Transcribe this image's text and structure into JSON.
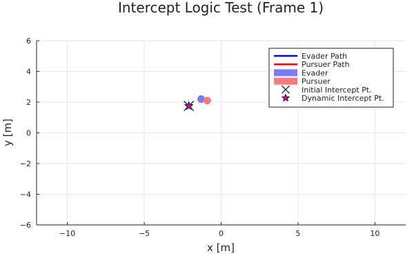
{
  "chart_data": {
    "type": "scatter",
    "title": "Intercept Logic Test (Frame 1)",
    "xlabel": "x [m]",
    "ylabel": "y [m]",
    "xlim": [
      -12,
      12
    ],
    "ylim": [
      -6,
      6
    ],
    "xticks": [
      -10,
      -5,
      0,
      5,
      10
    ],
    "yticks": [
      -6,
      -4,
      -2,
      0,
      2,
      4,
      6
    ],
    "xtick_labels": [
      "−10",
      "−5",
      "0",
      "5",
      "10"
    ],
    "ytick_labels": [
      "−6",
      "−4",
      "−2",
      "0",
      "2",
      "4",
      "6"
    ],
    "grid": true,
    "legend_position": "top-right",
    "series": [
      {
        "name": "Evader Path",
        "kind": "line",
        "color": "#0000ff",
        "x": [],
        "y": []
      },
      {
        "name": "Pursuer Path",
        "kind": "line",
        "color": "#ff0000",
        "x": [],
        "y": []
      },
      {
        "name": "Evader",
        "kind": "circle",
        "color": "#7b7bf7",
        "x": [
          -1.3
        ],
        "y": [
          2.2
        ]
      },
      {
        "name": "Pursuer",
        "kind": "circle",
        "color": "#f77b7b",
        "x": [
          -0.9
        ],
        "y": [
          2.1
        ]
      },
      {
        "name": "Initial Intercept Pt.",
        "kind": "x",
        "color": "#000000",
        "x": [
          -2.1
        ],
        "y": [
          1.75
        ]
      },
      {
        "name": "Dynamic Intercept Pt.",
        "kind": "star",
        "color": "#cc00cc",
        "x": [
          -2.1
        ],
        "y": [
          1.75
        ]
      }
    ]
  }
}
